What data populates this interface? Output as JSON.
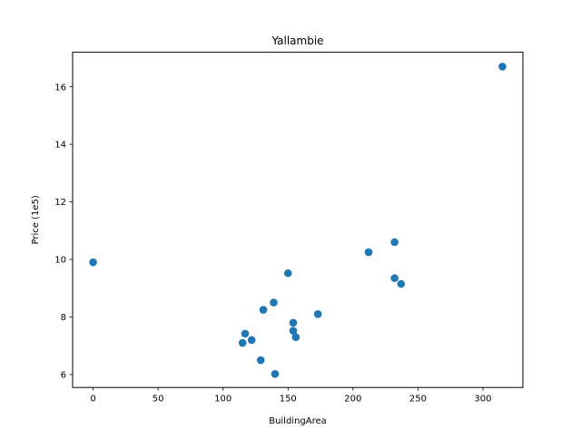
{
  "chart_data": {
    "type": "scatter",
    "title": "Yallambie",
    "xlabel": "BuildingArea",
    "ylabel": "Price (1e5)",
    "xlim": [
      -15.75,
      330.75
    ],
    "ylim": [
      5.55,
      17.2
    ],
    "xticks": [
      0,
      50,
      100,
      150,
      200,
      250,
      300
    ],
    "yticks": [
      6,
      8,
      10,
      12,
      14,
      16
    ],
    "xtick_labels": [
      "0",
      "50",
      "100",
      "150",
      "200",
      "250",
      "300"
    ],
    "ytick_labels": [
      "6",
      "8",
      "10",
      "12",
      "14",
      "16"
    ],
    "grid": false,
    "marker_color": "#1f77b4",
    "points": [
      {
        "x": 0,
        "y": 9.9
      },
      {
        "x": 115,
        "y": 7.1
      },
      {
        "x": 117,
        "y": 7.42
      },
      {
        "x": 122,
        "y": 7.2
      },
      {
        "x": 129,
        "y": 6.5
      },
      {
        "x": 131,
        "y": 8.25
      },
      {
        "x": 139,
        "y": 8.5
      },
      {
        "x": 140,
        "y": 6.02
      },
      {
        "x": 150,
        "y": 9.52
      },
      {
        "x": 154,
        "y": 7.8
      },
      {
        "x": 154,
        "y": 7.52
      },
      {
        "x": 156,
        "y": 7.3
      },
      {
        "x": 173,
        "y": 8.1
      },
      {
        "x": 212,
        "y": 10.25
      },
      {
        "x": 232,
        "y": 10.6
      },
      {
        "x": 232,
        "y": 9.35
      },
      {
        "x": 237,
        "y": 9.15
      },
      {
        "x": 315,
        "y": 16.7
      }
    ]
  }
}
